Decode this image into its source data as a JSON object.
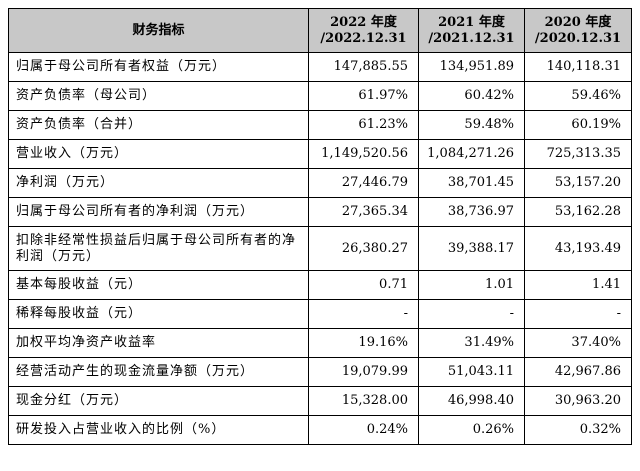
{
  "table": {
    "headers": {
      "metric": "财务指标",
      "col2022": {
        "year": "2022 年度",
        "date": "/2022.12.31"
      },
      "col2021": {
        "year": "2021 年度",
        "date": "/2021.12.31"
      },
      "col2020": {
        "year": "2020 年度",
        "date": "/2020.12.31"
      }
    },
    "rows": [
      {
        "label": "归属于母公司所有者权益（万元）",
        "v2022": "147,885.55",
        "v2021": "134,951.89",
        "v2020": "140,118.31"
      },
      {
        "label": "资产负债率（母公司）",
        "v2022": "61.97%",
        "v2021": "60.42%",
        "v2020": "59.46%"
      },
      {
        "label": "资产负债率（合并）",
        "v2022": "61.23%",
        "v2021": "59.48%",
        "v2020": "60.19%"
      },
      {
        "label": "营业收入（万元）",
        "v2022": "1,149,520.56",
        "v2021": "1,084,271.26",
        "v2020": "725,313.35"
      },
      {
        "label": "净利润（万元）",
        "v2022": "27,446.79",
        "v2021": "38,701.45",
        "v2020": "53,157.20"
      },
      {
        "label": "归属于母公司所有者的净利润（万元）",
        "v2022": "27,365.34",
        "v2021": "38,736.97",
        "v2020": "53,162.28"
      },
      {
        "label": "扣除非经常性损益后归属于母公司所有者的净利润（万元）",
        "v2022": "26,380.27",
        "v2021": "39,388.17",
        "v2020": "43,193.49"
      },
      {
        "label": "基本每股收益（元）",
        "v2022": "0.71",
        "v2021": "1.01",
        "v2020": "1.41"
      },
      {
        "label": "稀释每股收益（元）",
        "v2022": "-",
        "v2021": "-",
        "v2020": "-"
      },
      {
        "label": "加权平均净资产收益率",
        "v2022": "19.16%",
        "v2021": "31.49%",
        "v2020": "37.40%"
      },
      {
        "label": "经营活动产生的现金流量净额（万元）",
        "v2022": "19,079.99",
        "v2021": "51,043.11",
        "v2020": "42,967.86"
      },
      {
        "label": "现金分红（万元）",
        "v2022": "15,328.00",
        "v2021": "46,998.40",
        "v2020": "30,963.20"
      },
      {
        "label": "研发投入占营业收入的比例（%）",
        "v2022": "0.24%",
        "v2021": "0.26%",
        "v2020": "0.32%"
      }
    ]
  }
}
